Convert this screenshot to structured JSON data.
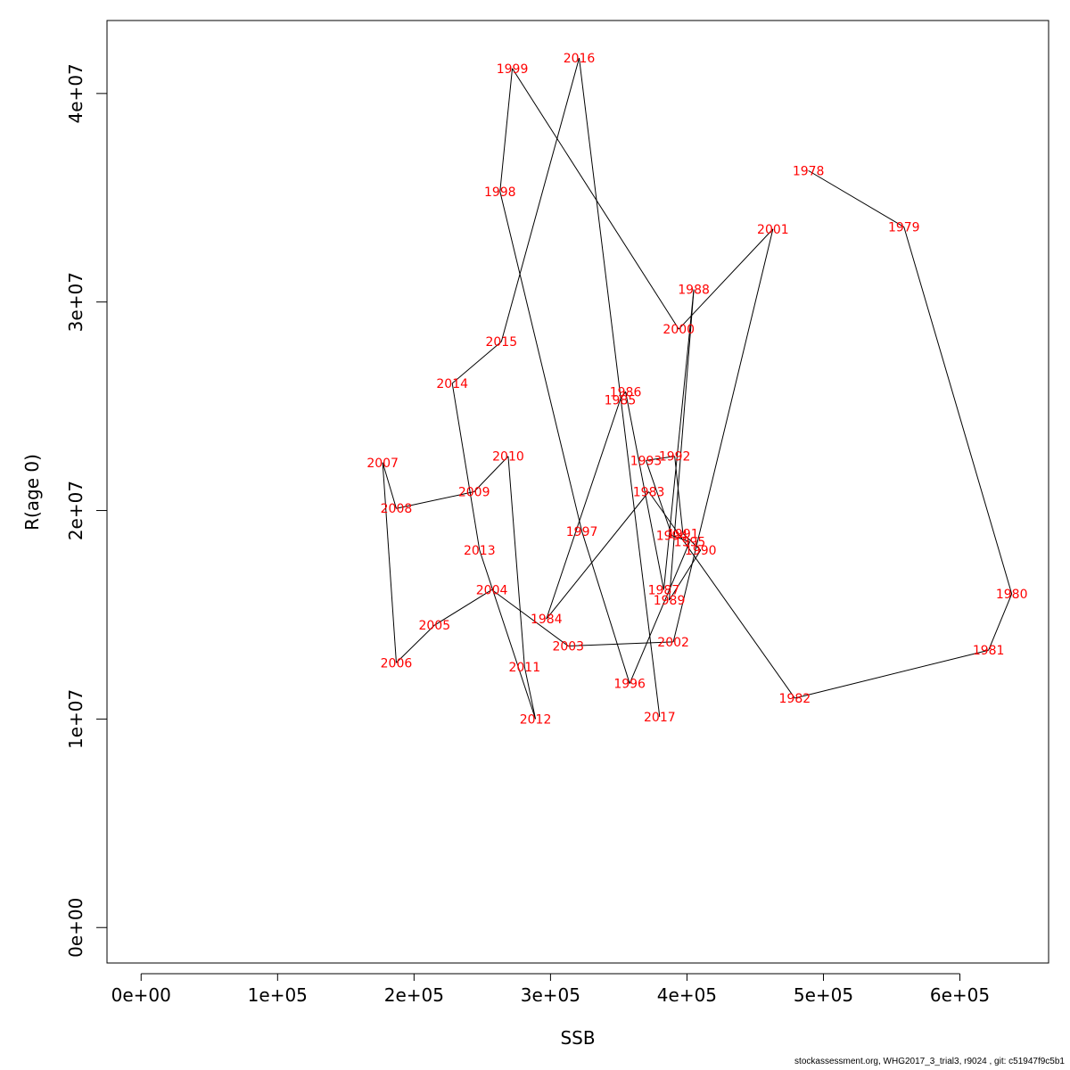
{
  "chart_data": {
    "type": "line",
    "xlabel": "SSB",
    "ylabel": "R(age 0)",
    "xlim": [
      -25000,
      665000
    ],
    "ylim": [
      -1700000,
      43500000
    ],
    "x_ticks": [
      0,
      100000,
      200000,
      300000,
      400000,
      500000,
      600000
    ],
    "x_tick_labels": [
      "0e+00",
      "1e+05",
      "2e+05",
      "3e+05",
      "4e+05",
      "5e+05",
      "6e+05"
    ],
    "y_ticks": [
      0,
      10000000,
      20000000,
      30000000,
      40000000
    ],
    "y_tick_labels": [
      "0e+00",
      "1e+07",
      "2e+07",
      "3e+07",
      "4e+07"
    ],
    "label_color": "#ff0000",
    "line_color": "#000000",
    "points": [
      {
        "year": "1978",
        "ssb": 489000,
        "rec": 36300000
      },
      {
        "year": "1979",
        "ssb": 559000,
        "rec": 33600000
      },
      {
        "year": "1980",
        "ssb": 638000,
        "rec": 16000000
      },
      {
        "year": "1981",
        "ssb": 621000,
        "rec": 13300000
      },
      {
        "year": "1982",
        "ssb": 479000,
        "rec": 11000000
      },
      {
        "year": "1983",
        "ssb": 372000,
        "rec": 20900000
      },
      {
        "year": "1984",
        "ssb": 297000,
        "rec": 14800000
      },
      {
        "year": "1985",
        "ssb": 351000,
        "rec": 25300000
      },
      {
        "year": "1986",
        "ssb": 355000,
        "rec": 25700000
      },
      {
        "year": "1987",
        "ssb": 383000,
        "rec": 16200000
      },
      {
        "year": "1988",
        "ssb": 405000,
        "rec": 30600000
      },
      {
        "year": "1989",
        "ssb": 387000,
        "rec": 15700000
      },
      {
        "year": "1990",
        "ssb": 410000,
        "rec": 18100000
      },
      {
        "year": "1991",
        "ssb": 397000,
        "rec": 18900000
      },
      {
        "year": "1992",
        "ssb": 391000,
        "rec": 22600000
      },
      {
        "year": "1993",
        "ssb": 370000,
        "rec": 22400000
      },
      {
        "year": "1994",
        "ssb": 389000,
        "rec": 18800000
      },
      {
        "year": "1995",
        "ssb": 402000,
        "rec": 18500000
      },
      {
        "year": "1996",
        "ssb": 358000,
        "rec": 11700000
      },
      {
        "year": "1997",
        "ssb": 323000,
        "rec": 19000000
      },
      {
        "year": "1998",
        "ssb": 263000,
        "rec": 35300000
      },
      {
        "year": "1999",
        "ssb": 272000,
        "rec": 41200000
      },
      {
        "year": "2000",
        "ssb": 394000,
        "rec": 28700000
      },
      {
        "year": "2001",
        "ssb": 463000,
        "rec": 33500000
      },
      {
        "year": "2002",
        "ssb": 390000,
        "rec": 13700000
      },
      {
        "year": "2003",
        "ssb": 313000,
        "rec": 13500000
      },
      {
        "year": "2004",
        "ssb": 257000,
        "rec": 16200000
      },
      {
        "year": "2005",
        "ssb": 215000,
        "rec": 14500000
      },
      {
        "year": "2006",
        "ssb": 187000,
        "rec": 12700000
      },
      {
        "year": "2007",
        "ssb": 177000,
        "rec": 22300000
      },
      {
        "year": "2008",
        "ssb": 187000,
        "rec": 20100000
      },
      {
        "year": "2009",
        "ssb": 244000,
        "rec": 20900000
      },
      {
        "year": "2010",
        "ssb": 269000,
        "rec": 22600000
      },
      {
        "year": "2011",
        "ssb": 281000,
        "rec": 12500000
      },
      {
        "year": "2012",
        "ssb": 289000,
        "rec": 10000000
      },
      {
        "year": "2013",
        "ssb": 248000,
        "rec": 18100000
      },
      {
        "year": "2014",
        "ssb": 228000,
        "rec": 26100000
      },
      {
        "year": "2015",
        "ssb": 264000,
        "rec": 28100000
      },
      {
        "year": "2016",
        "ssb": 321000,
        "rec": 41700000
      },
      {
        "year": "2017",
        "ssb": 380000,
        "rec": 10100000
      }
    ]
  },
  "footer": "stockassessment.org, WHG2017_3_trial3, r9024 , git: c51947f9c5b1"
}
